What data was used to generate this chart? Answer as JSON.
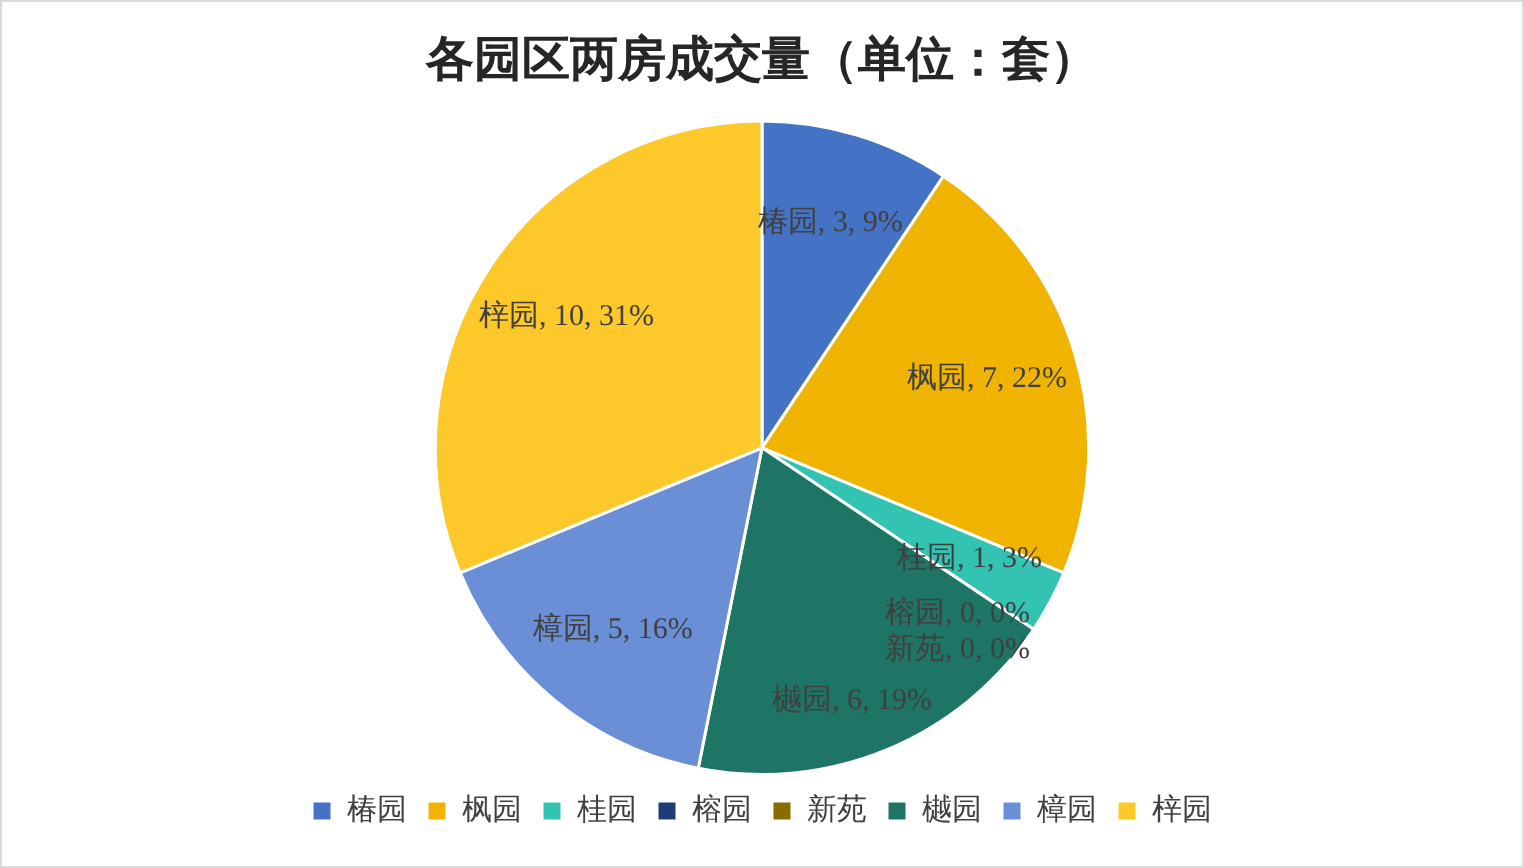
{
  "chart_data": {
    "type": "pie",
    "title": "各园区两房成交量（单位：套）",
    "categories": [
      "椿园",
      "枫园",
      "桂园",
      "榕园",
      "新苑",
      "樾园",
      "樟园",
      "梓园"
    ],
    "values": [
      3,
      7,
      1,
      0,
      0,
      6,
      5,
      10
    ],
    "colors": [
      "#4472c4",
      "#f0b400",
      "#33c3b3",
      "#1f3b7a",
      "#8a6d00",
      "#1e7565",
      "#6b8fd6",
      "#fcc82a"
    ],
    "value_labels": [
      "椿园, 3, 9%",
      "枫园, 7, 22%",
      "桂园, 1, 3%",
      "榕园, 0, 0%",
      "新苑, 0, 0%",
      "樾园, 6, 19%",
      "樟园, 5, 16%",
      "梓园, 10, 31%"
    ],
    "legend": "bottom"
  }
}
